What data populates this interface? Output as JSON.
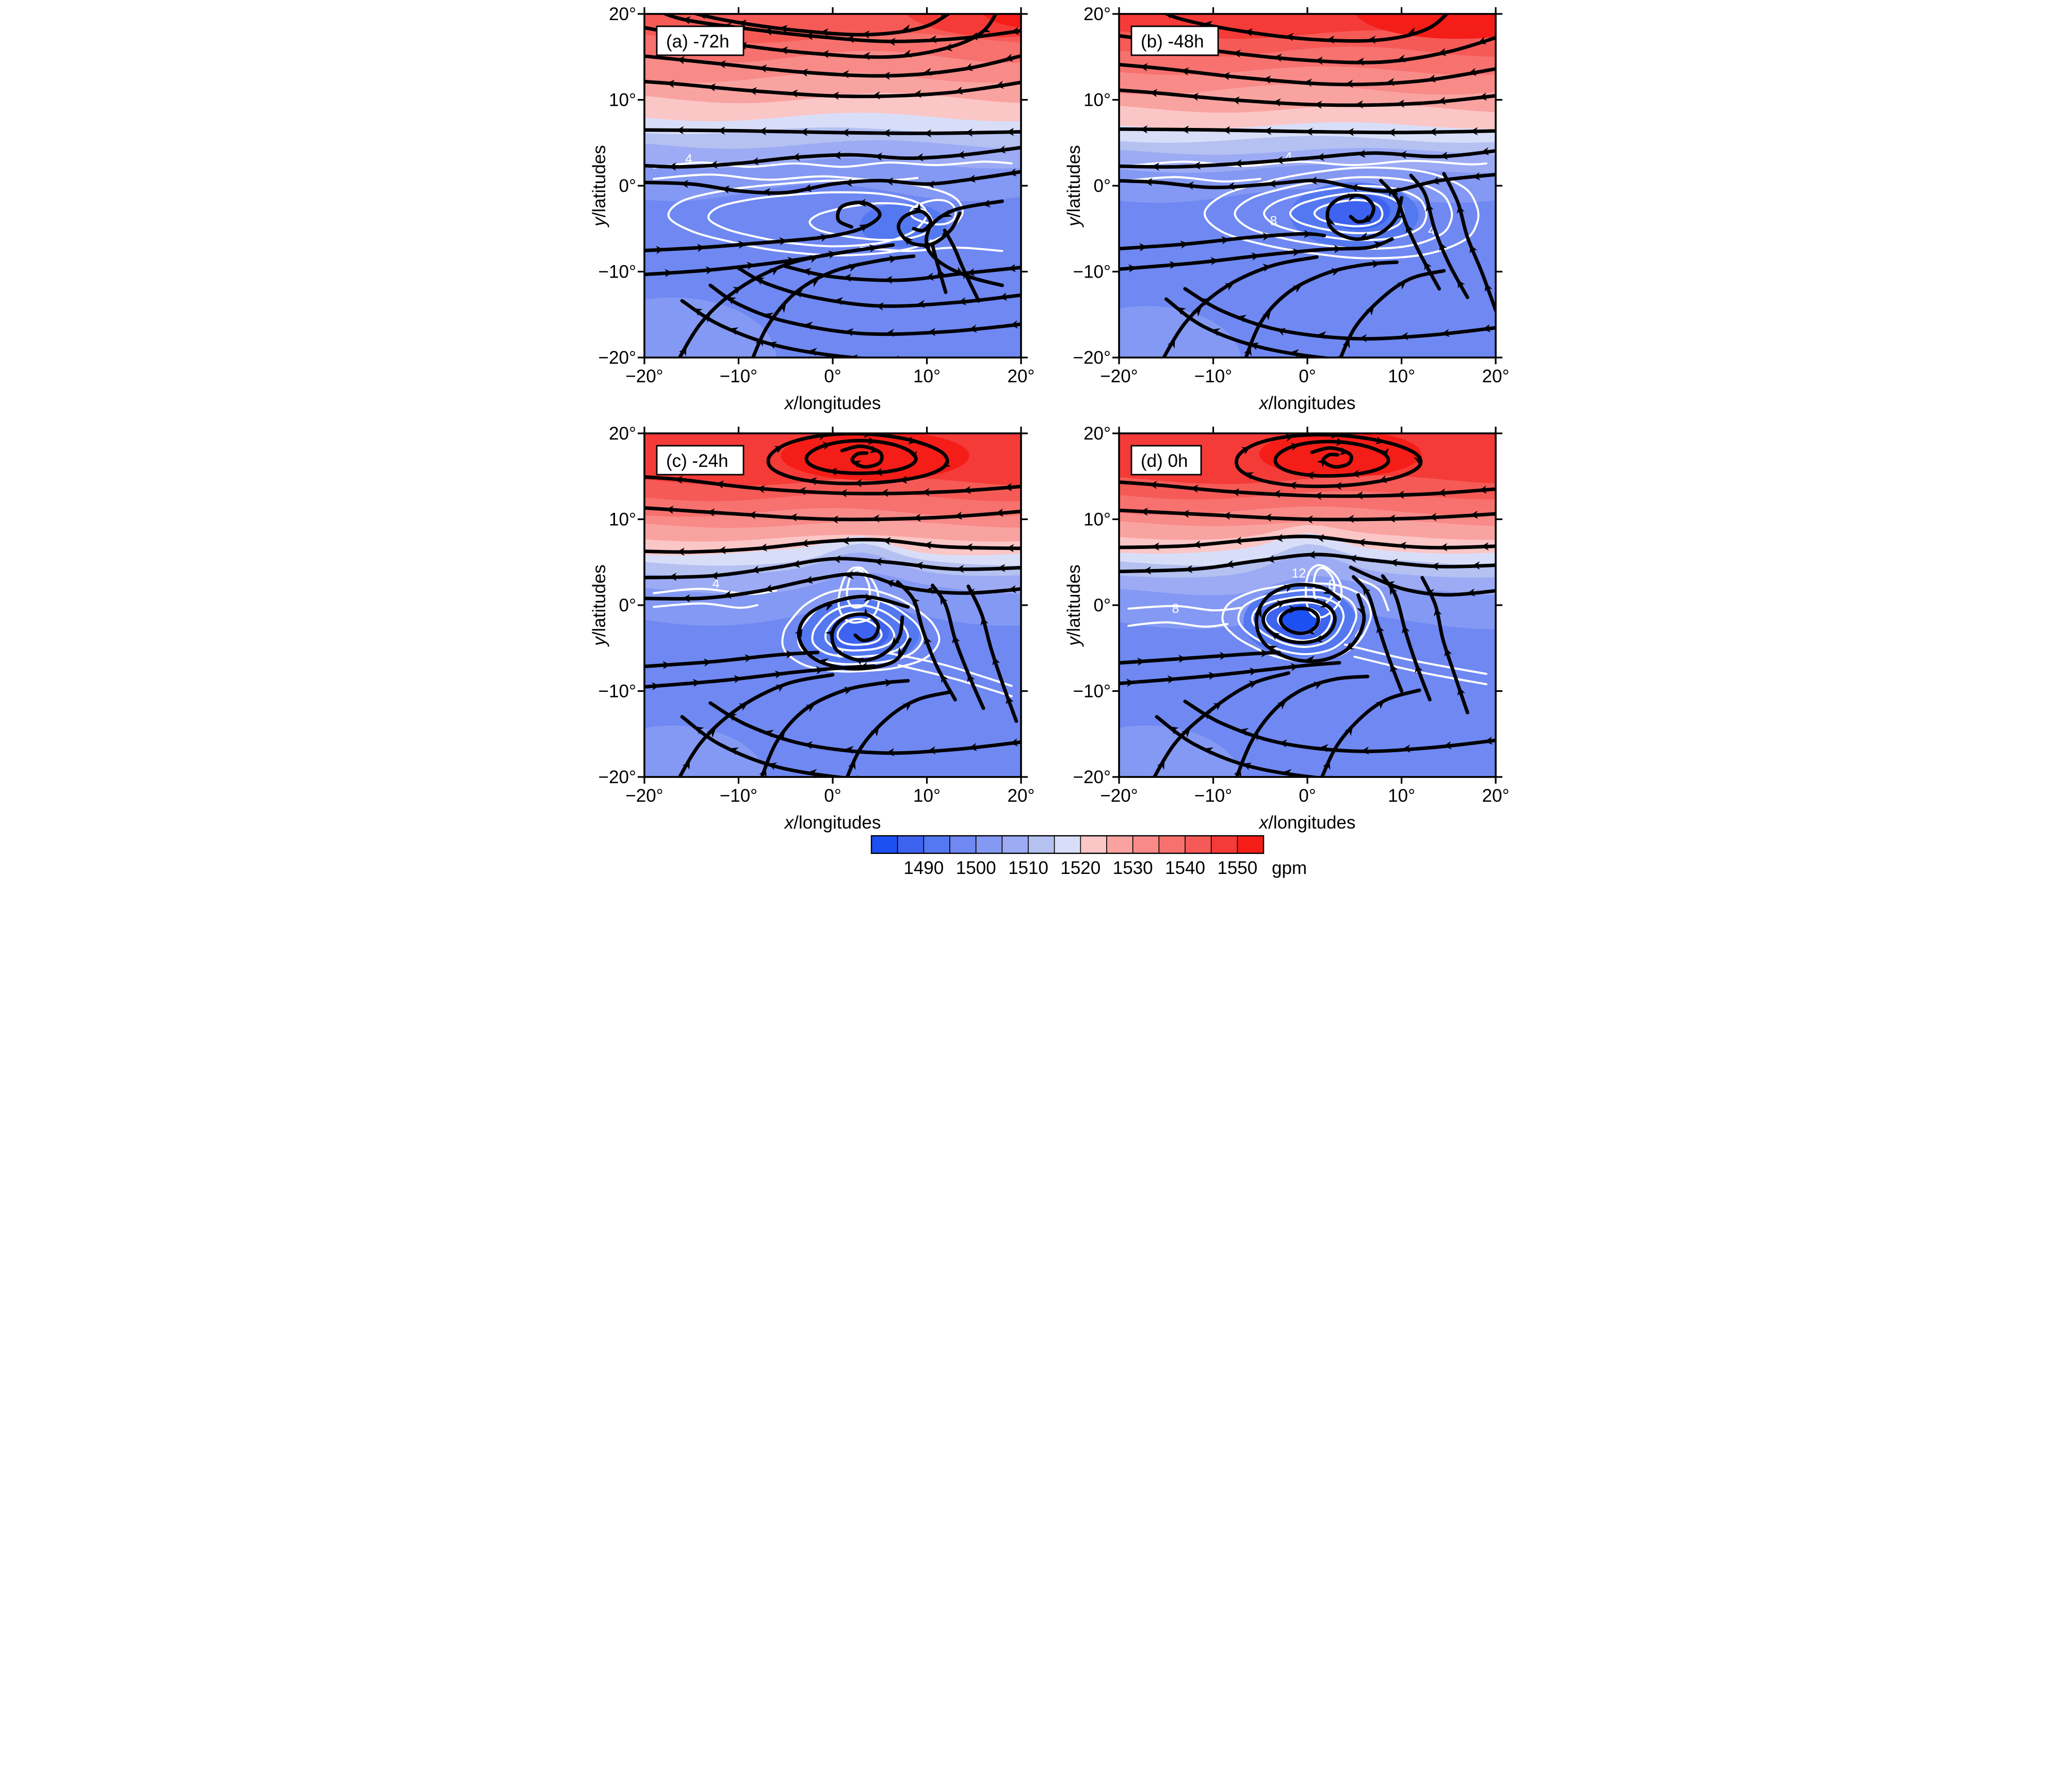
{
  "panels": [
    {
      "id": "a",
      "label": "(a) -72h",
      "contour_labels": [
        "4",
        "4"
      ]
    },
    {
      "id": "b",
      "label": "(b) -48h",
      "contour_labels": [
        "4",
        "8",
        "4"
      ]
    },
    {
      "id": "c",
      "label": "(c) -24h",
      "contour_labels": [
        "4",
        "8",
        "8"
      ]
    },
    {
      "id": "d",
      "label": "(d) 0h",
      "contour_labels": [
        "8",
        "12",
        "8",
        "4"
      ]
    }
  ],
  "axes": {
    "x_label_var": "x",
    "x_label_rest": "/longitudes",
    "y_label_var": "y",
    "y_label_rest": "/latitudes",
    "x_ticks": [
      "−20°",
      "−10°",
      "0°",
      "10°",
      "20°"
    ],
    "y_ticks": [
      "20°",
      "10°",
      "0°",
      "−10°",
      "−20°"
    ]
  },
  "colorbar": {
    "tick_labels": [
      "1490",
      "1500",
      "1510",
      "1520",
      "1530",
      "1540",
      "1550"
    ],
    "unit": "gpm",
    "colors": [
      "#1d50f2",
      "#3e63f0",
      "#5478f0",
      "#6f88f2",
      "#8499f3",
      "#9cabf4",
      "#b4c1f1",
      "#d9def8",
      "#fbc6c6",
      "#f9a3a1",
      "#f88a88",
      "#f7716e",
      "#f65a57",
      "#f43b38",
      "#f51d18"
    ]
  },
  "chart_data": {
    "type": "heatmap",
    "title": "",
    "description": "2x2 composite maps of geopotential height (color shading, gpm) with black wind streamlines and white tracked-anomaly contours at four lead times relative to cyclone maturity",
    "panel_grid": "2x2",
    "panels": [
      {
        "label": "(a) -72h",
        "lead_time_hours": -72,
        "vortex_center": {
          "lon": 8,
          "lat": -5.5
        },
        "white_contour_labeled_values": [
          4,
          4
        ]
      },
      {
        "label": "(b) -48h",
        "lead_time_hours": -48,
        "vortex_center": {
          "lon": 5,
          "lat": -3.3
        },
        "white_contour_labeled_values": [
          4,
          8,
          4
        ]
      },
      {
        "label": "(c) -24h",
        "lead_time_hours": -24,
        "vortex_center": {
          "lon": 2.8,
          "lat": -3.3
        },
        "white_contour_labeled_values": [
          4,
          8,
          8
        ]
      },
      {
        "label": "(d) 0h",
        "lead_time_hours": 0,
        "vortex_center": {
          "lon": -0.8,
          "lat": -1.8
        },
        "white_contour_labeled_values": [
          8,
          12,
          8,
          4
        ]
      }
    ],
    "x": {
      "label": "x/longitudes",
      "min": -20,
      "max": 20,
      "tick_values": [
        -20,
        -10,
        0,
        10,
        20
      ],
      "unit": "degrees"
    },
    "y": {
      "label": "y/latitudes",
      "min": -20,
      "max": 20,
      "tick_values": [
        -20,
        -10,
        0,
        10,
        20
      ],
      "unit": "degrees"
    },
    "shading": {
      "variable": "geopotential height",
      "unit": "gpm",
      "levels": [
        1480,
        1485,
        1490,
        1495,
        1500,
        1505,
        1510,
        1515,
        1520,
        1525,
        1530,
        1535,
        1540,
        1545,
        1550,
        1555
      ],
      "colorbar_tick_values": [
        1490,
        1500,
        1510,
        1520,
        1530,
        1540,
        1550
      ],
      "colors": [
        "#1d50f2",
        "#3e63f0",
        "#5478f0",
        "#6f88f2",
        "#8499f3",
        "#9cabf4",
        "#b4c1f1",
        "#d9def8",
        "#fbc6c6",
        "#f9a3a1",
        "#f88a88",
        "#f7716e",
        "#f65a57",
        "#f43b38",
        "#f51d18"
      ],
      "pattern": "high values (red) to the north, low values (blue) to the south, closed low at the cyclone center deepening from -72h to 0h, closed high near 17N"
    },
    "white_contours": {
      "interval": 4,
      "meaning": "tracked wave anomaly amplitude, closed contours around the cyclone center"
    },
    "streamlines": {
      "color": "black",
      "meaning": "horizontal wind; easterlies north of ~6N, clockwise cyclonic vortex near the equator-south, clockwise anticyclone near 17N in panels c and d"
    }
  }
}
